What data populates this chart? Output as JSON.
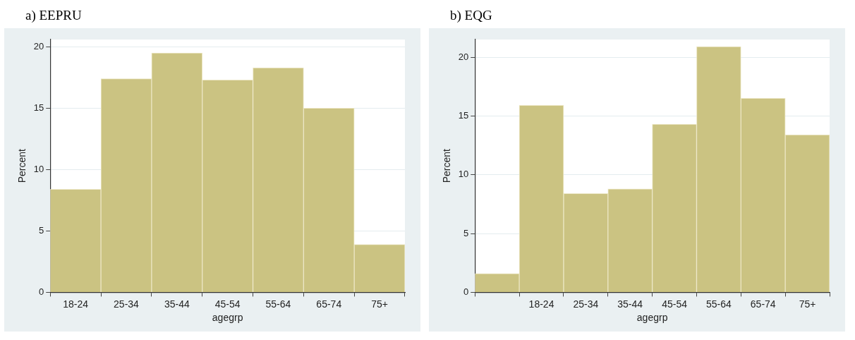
{
  "chart_data": [
    {
      "type": "bar",
      "title": "a)  EEPRU",
      "xlabel": "agegrp",
      "ylabel": "Percent",
      "categories": [
        "18-24",
        "25-34",
        "35-44",
        "45-54",
        "55-64",
        "65-74",
        "75+"
      ],
      "values": [
        8.4,
        17.4,
        19.5,
        17.3,
        18.3,
        15.0,
        3.9
      ],
      "color": "#cbc382",
      "ylim": [
        0,
        20.6
      ],
      "yticks": [
        0,
        5,
        10,
        15,
        20
      ],
      "grid": "y"
    },
    {
      "type": "bar",
      "title": "b)  EQG",
      "xlabel": "agegrp",
      "ylabel": "Percent",
      "categories": [
        null,
        "18-24",
        "25-34",
        "35-44",
        "45-54",
        "55-64",
        "65-74",
        "75+"
      ],
      "values": [
        1.6,
        15.9,
        8.4,
        8.8,
        14.3,
        20.9,
        16.5,
        13.4
      ],
      "color": "#cbc382",
      "ylim": [
        0,
        21.5
      ],
      "yticks": [
        0,
        5,
        10,
        15,
        20
      ],
      "grid": "y"
    }
  ]
}
